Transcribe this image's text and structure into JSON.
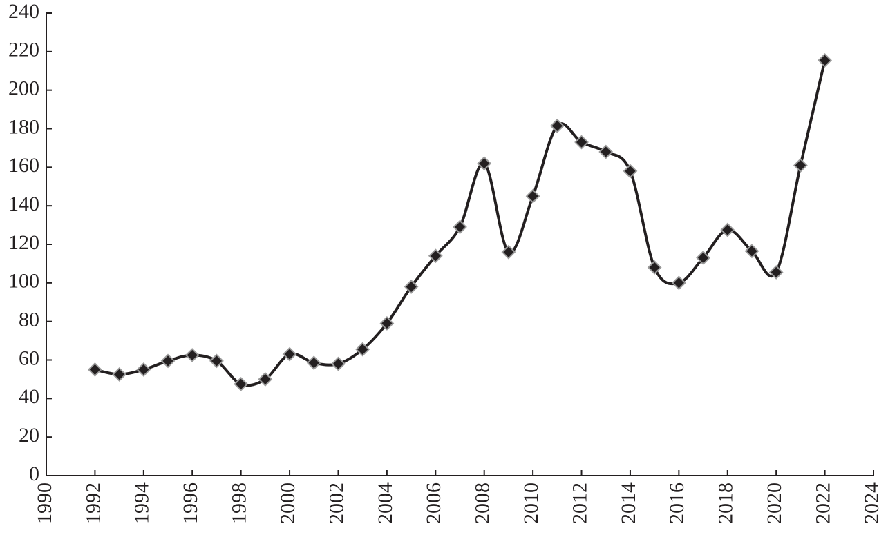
{
  "chart_data": {
    "type": "line",
    "x": [
      1992,
      1993,
      1994,
      1995,
      1996,
      1997,
      1998,
      1999,
      2000,
      2001,
      2002,
      2003,
      2004,
      2005,
      2006,
      2007,
      2008,
      2009,
      2010,
      2011,
      2012,
      2013,
      2014,
      2015,
      2016,
      2017,
      2018,
      2019,
      2020,
      2021,
      2022
    ],
    "series": [
      {
        "color": "#231f20",
        "values": [
          55,
          52.5,
          55,
          59.5,
          62.5,
          59.5,
          47.5,
          50,
          63,
          58.5,
          58,
          65.5,
          79,
          98,
          114,
          129,
          162,
          116,
          145,
          181.5,
          173,
          168,
          158,
          108,
          100,
          113,
          127.5,
          116.5,
          105.5,
          161,
          215.5
        ]
      }
    ],
    "xlim": [
      1990,
      2024
    ],
    "xticks": [
      1990,
      1992,
      1994,
      1996,
      1998,
      2000,
      2002,
      2004,
      2006,
      2008,
      2010,
      2012,
      2014,
      2016,
      2018,
      2020,
      2022,
      2024
    ],
    "ylim": [
      0,
      240
    ],
    "yticks": [
      0,
      20,
      40,
      60,
      80,
      100,
      120,
      140,
      160,
      180,
      200,
      220,
      240
    ],
    "grid": false,
    "smooth": true
  }
}
